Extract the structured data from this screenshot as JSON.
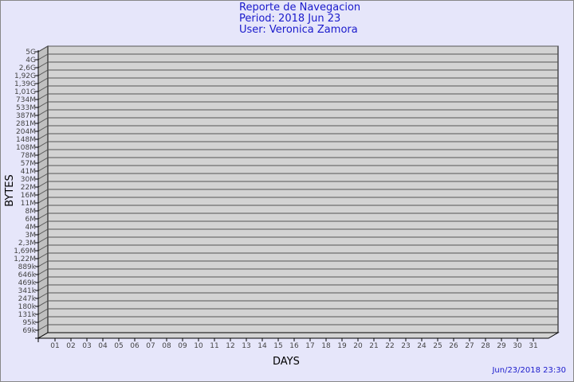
{
  "chart_data": {
    "type": "bar",
    "title": [
      "Reporte de Navegacion",
      "Period: 2018 Jun 23",
      "User: Veronica Zamora"
    ],
    "xlabel": "DAYS",
    "ylabel": "BYTES",
    "categories": [
      "01",
      "02",
      "03",
      "04",
      "05",
      "06",
      "07",
      "08",
      "09",
      "10",
      "11",
      "12",
      "13",
      "14",
      "15",
      "16",
      "17",
      "18",
      "19",
      "20",
      "21",
      "22",
      "23",
      "24",
      "25",
      "26",
      "27",
      "28",
      "29",
      "30",
      "31"
    ],
    "values": [
      0,
      0,
      0,
      0,
      0,
      0,
      0,
      0,
      0,
      0,
      0,
      0,
      0,
      0,
      0,
      0,
      0,
      0,
      0,
      0,
      0,
      0,
      0,
      0,
      0,
      0,
      0,
      0,
      0,
      0,
      0
    ],
    "y_tick_labels": [
      "5G",
      "4G",
      "2,6G",
      "1,92G",
      "1,39G",
      "1,01G",
      "734M",
      "533M",
      "387M",
      "281M",
      "204M",
      "148M",
      "108M",
      "78M",
      "57M",
      "41M",
      "30M",
      "22M",
      "16M",
      "11M",
      "8M",
      "6M",
      "4M",
      "3M",
      "2,3M",
      "1,69M",
      "1,22M",
      "889k",
      "646k",
      "469k",
      "341k",
      "247k",
      "180k",
      "131k",
      "95k",
      "69k"
    ],
    "y_scale": "log",
    "grid": true,
    "style": "3d",
    "colors": {
      "background": "#e6e6fa",
      "plot": "#d3d3d3",
      "side": "#c0c0c0",
      "title": "#1a1acc"
    }
  },
  "timestamp": "Jun/23/2018 23:30"
}
